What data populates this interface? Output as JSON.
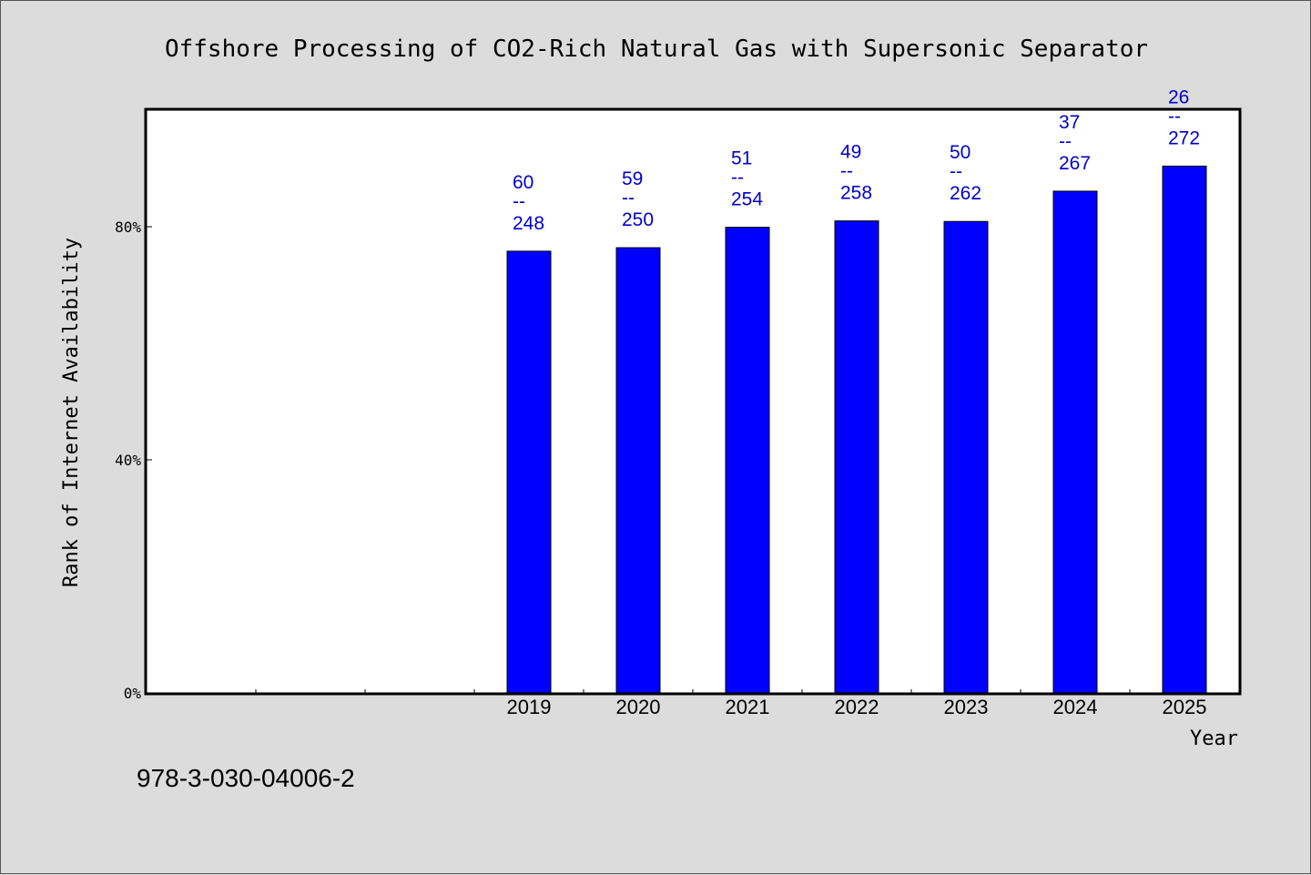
{
  "chart_data": {
    "type": "bar",
    "title": "Offshore Processing of CO2-Rich Natural Gas with Supersonic Separator",
    "xlabel": "Year",
    "ylabel": "Rank of Internet Availability",
    "y_unit": "%",
    "ylim": [
      0,
      100
    ],
    "yticks": [
      {
        "value": 0,
        "label": "0%"
      },
      {
        "value": 40,
        "label": "40%"
      },
      {
        "value": 80,
        "label": "80%"
      }
    ],
    "x_slots": 10,
    "grid": false,
    "categories": [
      "2019",
      "2020",
      "2021",
      "2022",
      "2023",
      "2024",
      "2025"
    ],
    "values": [
      75.8,
      76.4,
      79.9,
      81.0,
      80.9,
      86.1,
      90.4
    ],
    "labels": [
      {
        "top": "60",
        "sep": "--",
        "bottom": "248"
      },
      {
        "top": "59",
        "sep": "--",
        "bottom": "250"
      },
      {
        "top": "51",
        "sep": "--",
        "bottom": "254"
      },
      {
        "top": "49",
        "sep": "--",
        "bottom": "258"
      },
      {
        "top": "50",
        "sep": "--",
        "bottom": "262"
      },
      {
        "top": "37",
        "sep": "--",
        "bottom": "267"
      },
      {
        "top": "26",
        "sep": "--",
        "bottom": "272"
      }
    ],
    "colors": {
      "bar": "#0000ff",
      "label": "#0000cc",
      "axis": "#000000",
      "background": "#dcdcdc",
      "plot": "#ffffff"
    }
  },
  "footer": {
    "isbn": "978-3-030-04006-2"
  }
}
